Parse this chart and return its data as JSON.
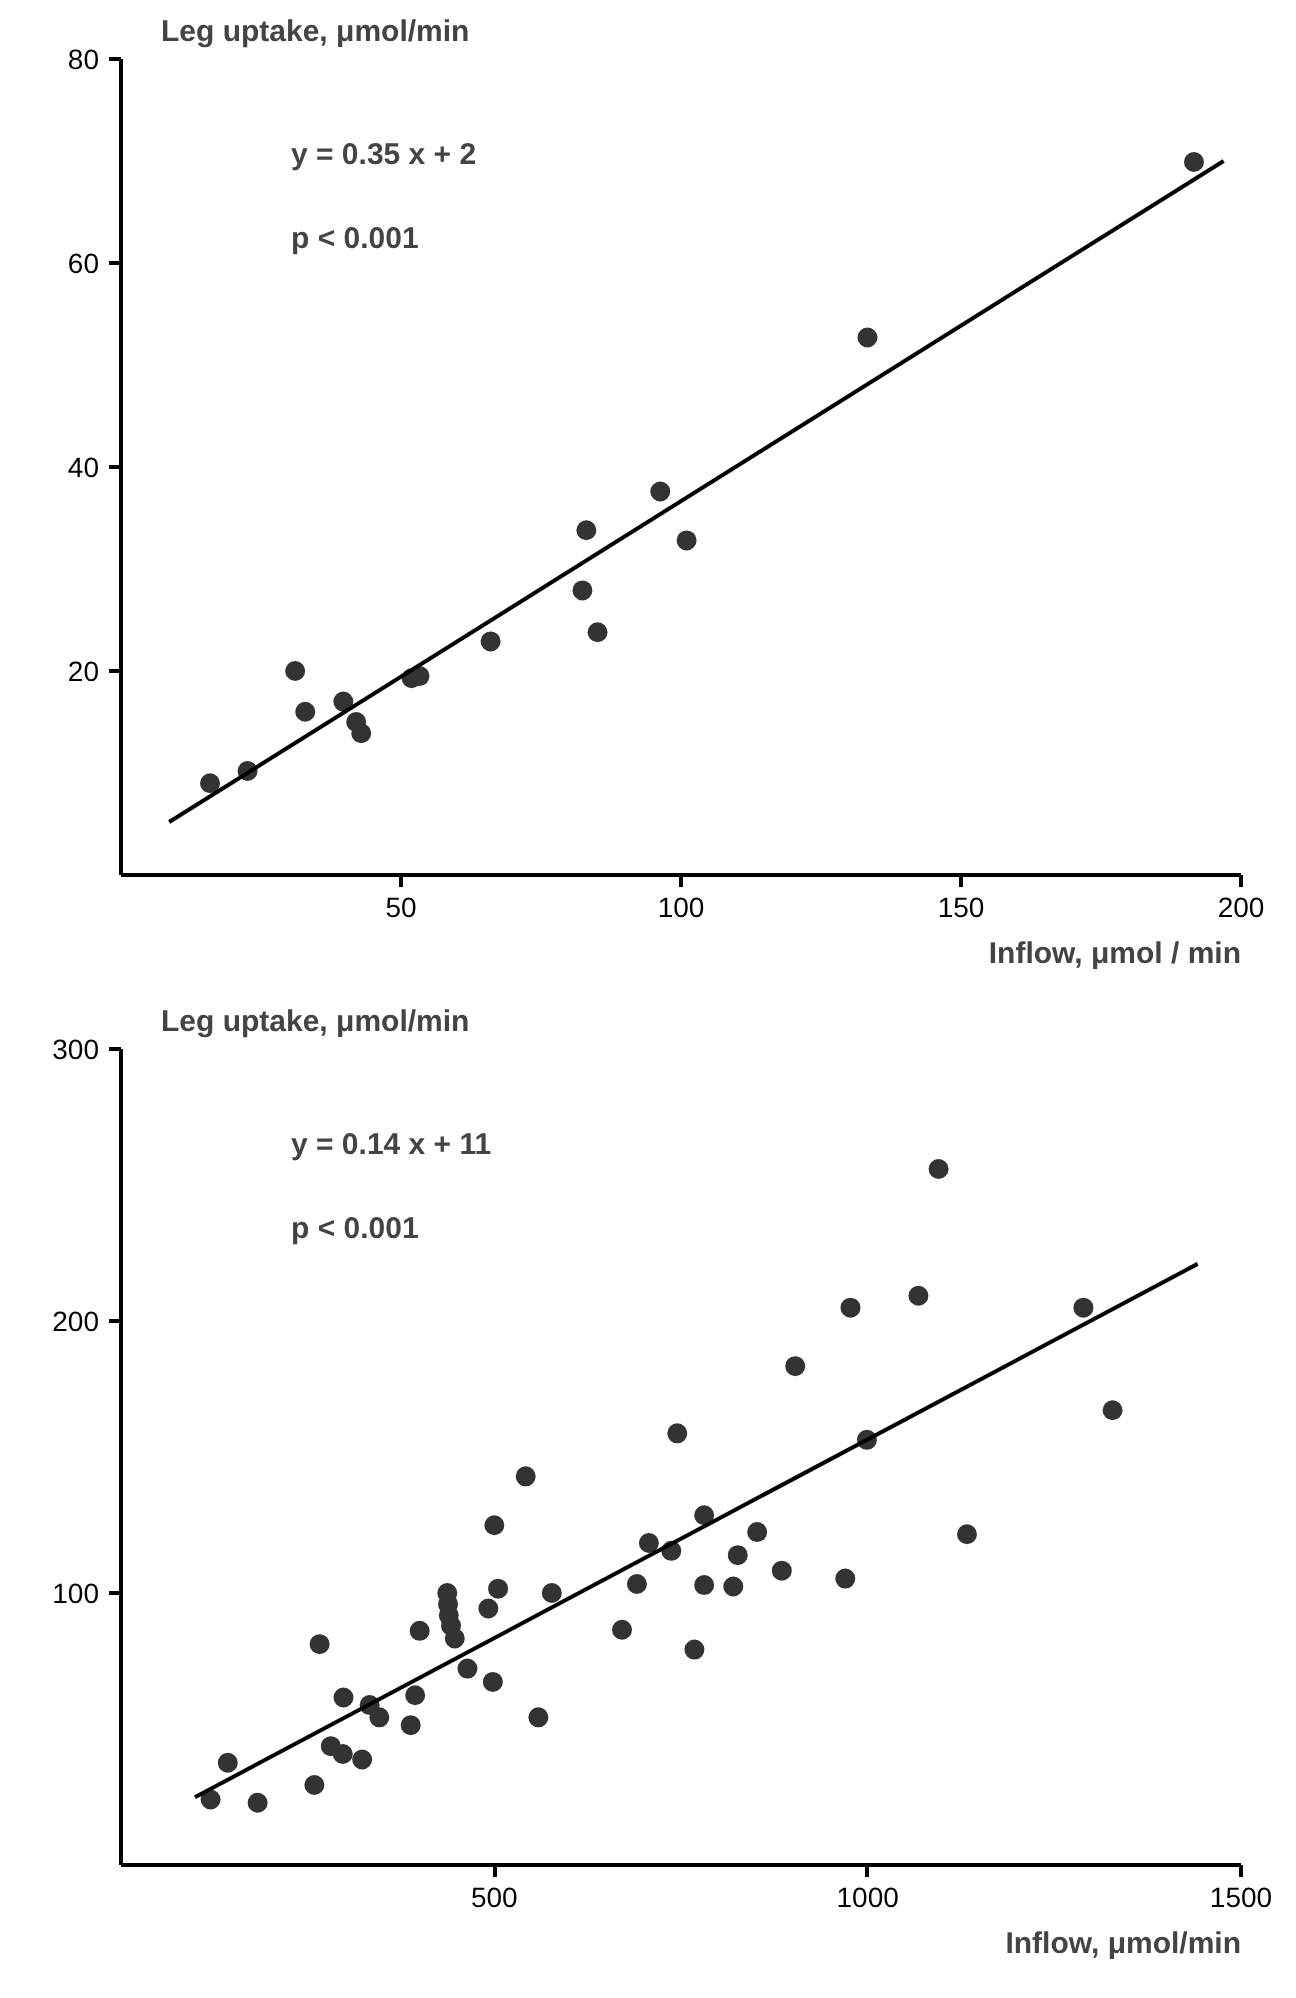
{
  "chart_data": [
    {
      "type": "scatter",
      "ylabel": "Leg uptake, μmol/min",
      "xlabel": "Inflow, μmol / min",
      "xlim": [
        0,
        200
      ],
      "ylim": [
        0,
        80
      ],
      "xticks": [
        50,
        100,
        150,
        200
      ],
      "yticks": [
        20,
        40,
        60,
        80
      ],
      "grid": false,
      "marker": "circle",
      "annotations": [
        "y = 0.35 x + 2",
        "p < 0.001"
      ],
      "series": [
        {
          "color": "#333333",
          "x": [
            15.9,
            22.6,
            31.1,
            32.9,
            39.7,
            42.0,
            42.9,
            51.9,
            53.3,
            66.0,
            82.4,
            83.1,
            85.1,
            96.3,
            101.0,
            133.3,
            191.6
          ],
          "values": [
            9.0,
            10.2,
            20.0,
            16.0,
            17.0,
            15.0,
            13.9,
            19.3,
            19.5,
            22.9,
            27.9,
            33.8,
            23.8,
            37.6,
            32.8,
            52.7,
            69.9
          ]
        },
        {
          "type": "line",
          "color": "#000000",
          "marker": "none",
          "line_style": "solid",
          "x": [
            8.6,
            196.9
          ],
          "values": [
            5.2,
            70.0
          ]
        }
      ]
    },
    {
      "type": "scatter",
      "ylabel": "Leg uptake, μmol/min",
      "xlabel": "Inflow, μmol/min",
      "xlim": [
        0,
        1500
      ],
      "ylim": [
        0,
        300
      ],
      "xticks": [
        500,
        1000,
        1500
      ],
      "yticks": [
        100,
        200,
        300
      ],
      "grid": false,
      "marker": "circle",
      "annotations": [
        "y = 0.14 x + 11",
        "p < 0.001"
      ],
      "series": [
        {
          "color": "#333333",
          "x": [
            120,
            143,
            183,
            259,
            266,
            281,
            297,
            298,
            323,
            333,
            346,
            388,
            394,
            400,
            437,
            438,
            439,
            442,
            447,
            464,
            492,
            498,
            500,
            505,
            542,
            559,
            577,
            671,
            691,
            707,
            737,
            745,
            768,
            781,
            781,
            820,
            826,
            852,
            885,
            903,
            970,
            977,
            999,
            1068,
            1095,
            1133,
            1289,
            1328
          ],
          "values": [
            24.1,
            37.6,
            22.9,
            29.4,
            81.2,
            43.7,
            40.8,
            61.6,
            38.8,
            58.8,
            54.3,
            51.4,
            62.4,
            86.1,
            100,
            95.9,
            91.8,
            88.0,
            83.3,
            72.2,
            94.3,
            67.3,
            124.9,
            101.6,
            142.9,
            54.3,
            100,
            86.5,
            103.3,
            118.4,
            115.5,
            158.7,
            79.2,
            128.6,
            102.9,
            102.4,
            113.9,
            122.4,
            108.2,
            183.4,
            105.3,
            204.9,
            156.3,
            209.3,
            255.9,
            121.6,
            204.9,
            167.2
          ]
        },
        {
          "type": "line",
          "color": "#000000",
          "marker": "none",
          "line_style": "solid",
          "x": [
            99,
            1442
          ],
          "values": [
            24.9,
            221
          ]
        }
      ]
    }
  ]
}
